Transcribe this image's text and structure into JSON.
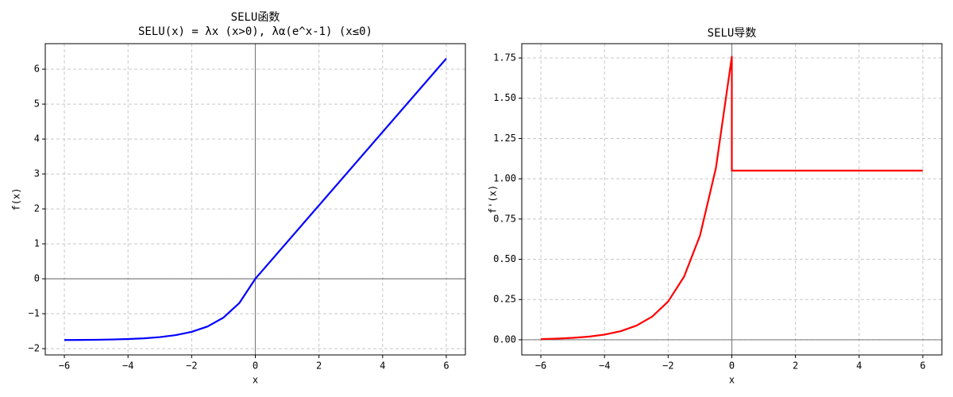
{
  "chart_data": [
    {
      "type": "line",
      "title": "SELU函数",
      "subtitle": "SELU(x) = λx (x>0), λα(e^x-1) (x≤0)",
      "xlabel": "x",
      "ylabel": "f(x)",
      "color": "#0000ff",
      "grid": true,
      "zero_lines": true,
      "x": [
        -6,
        -5.5,
        -5,
        -4.5,
        -4,
        -3.5,
        -3,
        -2.5,
        -2,
        -1.5,
        -1,
        -0.5,
        0,
        6
      ],
      "values": [
        -1.7538,
        -1.751,
        -1.7463,
        -1.7386,
        -1.7259,
        -1.705,
        -1.6706,
        -1.6138,
        -1.5202,
        -1.3658,
        -1.1113,
        -0.6918,
        0,
        6.3042
      ],
      "xlim": [
        -6.6,
        6.6
      ],
      "ylim": [
        -2.18,
        6.73
      ],
      "xticks": [
        {
          "value": -6,
          "label": "−6"
        },
        {
          "value": -4,
          "label": "−4"
        },
        {
          "value": -2,
          "label": "−2"
        },
        0,
        2,
        4,
        6
      ],
      "yticks": [
        {
          "value": -2,
          "label": "−2"
        },
        {
          "value": -1,
          "label": "−1"
        },
        0,
        1,
        2,
        3,
        4,
        5,
        6
      ]
    },
    {
      "type": "line",
      "title": "SELU导数",
      "xlabel": "x",
      "ylabel": "f'(x)",
      "color": "#ff0000",
      "grid": true,
      "zero_lines": true,
      "x": [
        -6,
        -5.5,
        -5,
        -4.5,
        -4,
        -3.5,
        -3,
        -2.5,
        -2,
        -1.5,
        -1,
        -0.5,
        0,
        0,
        6
      ],
      "values": [
        0.00436,
        0.00719,
        0.01185,
        0.01953,
        0.0322,
        0.05309,
        0.08753,
        0.14432,
        0.23794,
        0.3923,
        0.64679,
        1.06637,
        1.75814,
        1.0507,
        1.0507
      ],
      "xlim": [
        -6.6,
        6.6
      ],
      "ylim": [
        -0.094,
        1.839
      ],
      "xticks": [
        {
          "value": -6,
          "label": "−6"
        },
        {
          "value": -4,
          "label": "−4"
        },
        {
          "value": -2,
          "label": "−2"
        },
        0,
        2,
        4,
        6
      ],
      "yticks": [
        {
          "value": 0,
          "label": "0.00"
        },
        0.25,
        {
          "value": 0.5,
          "label": "0.50"
        },
        0.75,
        {
          "value": 1,
          "label": "1.00"
        },
        1.25,
        {
          "value": 1.5,
          "label": "1.50"
        },
        1.75
      ]
    }
  ]
}
